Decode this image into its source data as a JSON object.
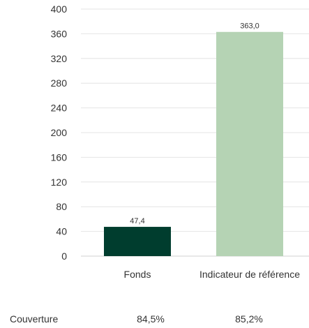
{
  "chart_data": {
    "type": "bar",
    "categories": [
      "Fonds",
      "Indicateur de référence"
    ],
    "values": [
      47.4,
      363.0
    ],
    "value_labels": [
      "47,4",
      "363,0"
    ],
    "colors": [
      "#003d2e",
      "#b5d3b4"
    ],
    "ylim": [
      0,
      400
    ],
    "yticks": [
      0,
      40,
      80,
      120,
      160,
      200,
      240,
      280,
      320,
      360,
      400
    ],
    "grid": true,
    "title": "",
    "xlabel": "",
    "ylabel": ""
  },
  "coverage": {
    "label": "Couverture",
    "values": [
      "84,5%",
      "85,2%"
    ]
  }
}
